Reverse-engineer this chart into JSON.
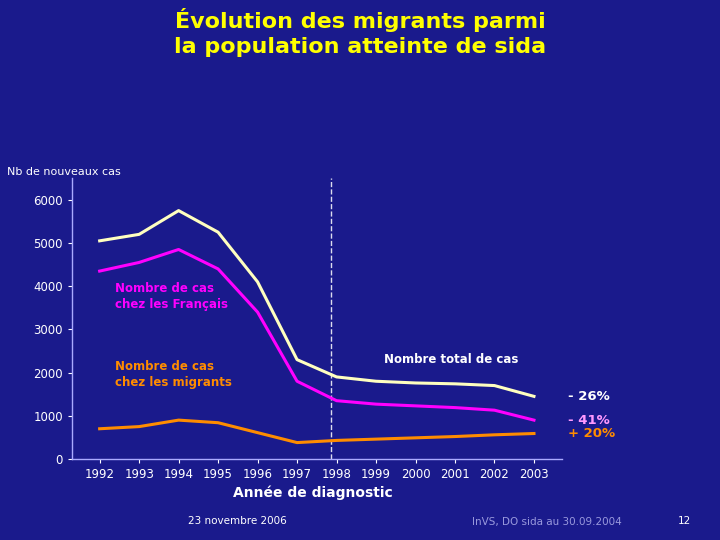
{
  "title_line1": "Évolution des migrants parmi",
  "title_line2": "la population atteinte de sida",
  "title_color": "#FFFF00",
  "bg_color": "#1a1a8c",
  "plot_bg_color": "#1a1a8c",
  "ylabel": "Nb de nouveaux cas",
  "xlabel": "Année de diagnostic",
  "years": [
    1992,
    1993,
    1994,
    1995,
    1996,
    1997,
    1998,
    1999,
    2000,
    2001,
    2002,
    2003
  ],
  "total": [
    5050,
    5200,
    5750,
    5250,
    4100,
    2300,
    1900,
    1800,
    1760,
    1740,
    1700,
    1450
  ],
  "francais": [
    4350,
    4550,
    4850,
    4400,
    3400,
    1800,
    1350,
    1270,
    1230,
    1190,
    1130,
    900
  ],
  "migrants": [
    700,
    750,
    900,
    840,
    610,
    380,
    430,
    460,
    490,
    520,
    560,
    590
  ],
  "total_color": "#FFFFC0",
  "francais_color": "#FF00FF",
  "migrants_color": "#FF8C00",
  "ylim": [
    0,
    6500
  ],
  "yticks": [
    0,
    1000,
    2000,
    3000,
    4000,
    5000,
    6000
  ],
  "annot_total": "Nombre total de cas",
  "annot_francais_l1": "Nombre de cas",
  "annot_francais_l2": "chez les Français",
  "annot_migrants_l1": "Nombre de cas",
  "annot_migrants_l2": "chez les migrants",
  "pct_total": "- 26%",
  "pct_total_color": "#FFFFFF",
  "pct_francais": "- 41%",
  "pct_francais_color": "#FF99FF",
  "pct_migrants": "+ 20%",
  "pct_migrants_color": "#FF8C00",
  "dashed_line_x": 1997.85,
  "footnote_left": "23 novembre 2006",
  "footnote_right": "InVS, DO sida au 30.09.2004",
  "footnote_page": "12",
  "axis_color": "#AAAAFF",
  "tick_color": "#FFFFFF",
  "annot_total_color": "#FFFFFF"
}
